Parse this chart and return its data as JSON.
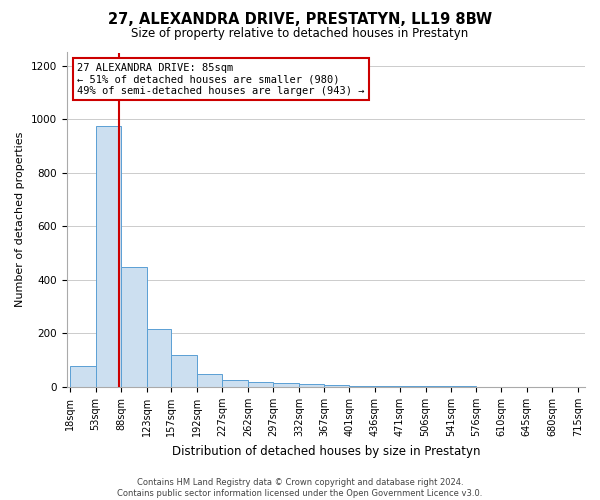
{
  "title": "27, ALEXANDRA DRIVE, PRESTATYN, LL19 8BW",
  "subtitle": "Size of property relative to detached houses in Prestatyn",
  "xlabel": "Distribution of detached houses by size in Prestatyn",
  "ylabel": "Number of detached properties",
  "property_size": 85,
  "bar_edges": [
    18,
    53,
    88,
    123,
    157,
    192,
    227,
    262,
    297,
    332,
    367,
    401,
    436,
    471,
    506,
    541,
    576,
    610,
    645,
    680,
    715
  ],
  "bar_heights": [
    80,
    975,
    450,
    215,
    120,
    50,
    25,
    20,
    15,
    10,
    6,
    4,
    3,
    2,
    2,
    2,
    1,
    1,
    1,
    1
  ],
  "bar_color": "#ccdff0",
  "bar_edge_color": "#5a9fd4",
  "redline_color": "#cc0000",
  "annotation_text": "27 ALEXANDRA DRIVE: 85sqm\n← 51% of detached houses are smaller (980)\n49% of semi-detached houses are larger (943) →",
  "annotation_box_color": "#ffffff",
  "annotation_box_edge": "#cc0000",
  "ylim": [
    0,
    1250
  ],
  "yticks": [
    0,
    200,
    400,
    600,
    800,
    1000,
    1200
  ],
  "footer_line1": "Contains HM Land Registry data © Crown copyright and database right 2024.",
  "footer_line2": "Contains public sector information licensed under the Open Government Licence v3.0.",
  "fig_width": 6.0,
  "fig_height": 5.0,
  "title_fontsize": 10.5,
  "subtitle_fontsize": 8.5,
  "ylabel_fontsize": 8.0,
  "xlabel_fontsize": 8.5,
  "tick_fontsize": 7.0,
  "annot_fontsize": 7.5,
  "footer_fontsize": 6.0
}
